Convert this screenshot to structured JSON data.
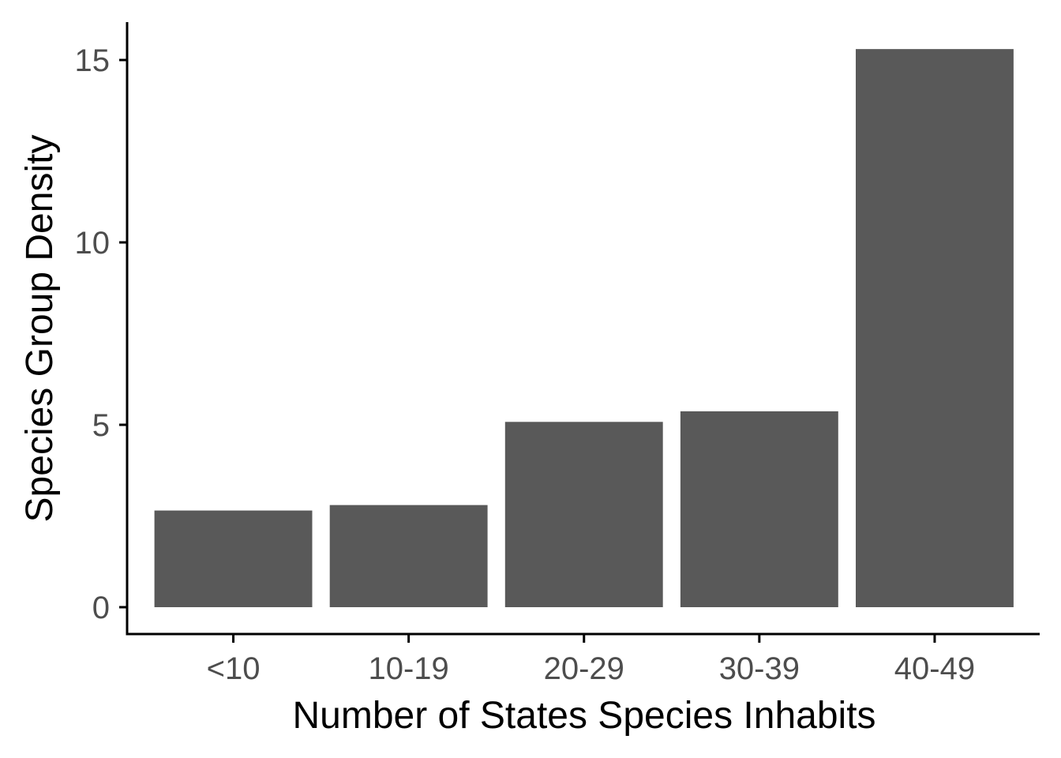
{
  "chart_data": {
    "type": "bar",
    "title": "",
    "xlabel": "Number of States Species Inhabits",
    "ylabel": "Species Group Density",
    "categories": [
      "<10",
      "10-19",
      "20-29",
      "30-39",
      "40-49"
    ],
    "values": [
      2.65,
      2.8,
      5.08,
      5.37,
      15.3
    ],
    "ylim": [
      0,
      15.98
    ],
    "yticks": [
      0,
      5,
      10,
      15
    ],
    "ytick_labels": [
      "0",
      "5",
      "10",
      "15"
    ],
    "grid": false,
    "legend": "none",
    "colors": {
      "bar": "#595959",
      "axis": "#000000",
      "tick_text": "#4d4d4d",
      "title_text": "#000000",
      "background": "#ffffff"
    }
  }
}
